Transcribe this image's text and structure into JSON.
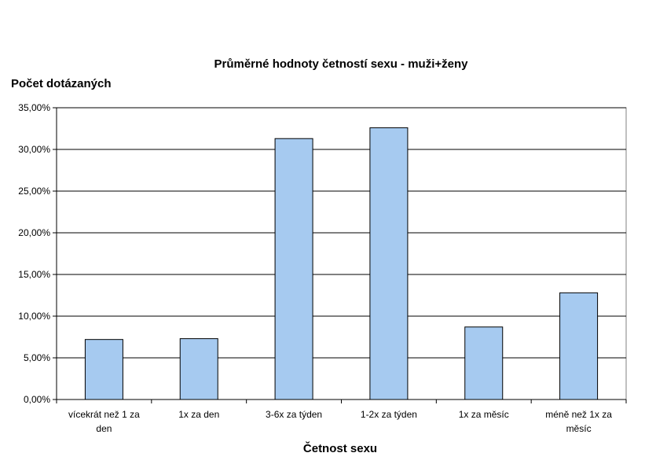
{
  "chart_data": {
    "type": "bar",
    "title": "Průměrné hodnoty četností sexu - muži+ženy",
    "ylabel": "Počet dotázaných",
    "xlabel": "Četnost sexu",
    "categories": [
      [
        "vícekrát než 1 za",
        "den"
      ],
      [
        "1x za den"
      ],
      [
        "3-6x za týden"
      ],
      [
        "1-2x za týden"
      ],
      [
        "1x za měsíc"
      ],
      [
        "méně než 1x za",
        "měsíc"
      ]
    ],
    "values": [
      7.2,
      7.3,
      31.3,
      32.6,
      8.7,
      12.8
    ],
    "ylim": [
      0,
      35
    ],
    "yticks": [
      "0,00%",
      "5,00%",
      "10,00%",
      "15,00%",
      "20,00%",
      "25,00%",
      "30,00%",
      "35,00%"
    ],
    "grid": true,
    "legend": "none",
    "colors": {
      "bar_fill": "#A6CAF0",
      "bar_stroke": "#000000",
      "grid": "#000000",
      "plot_border": "#808080"
    }
  }
}
